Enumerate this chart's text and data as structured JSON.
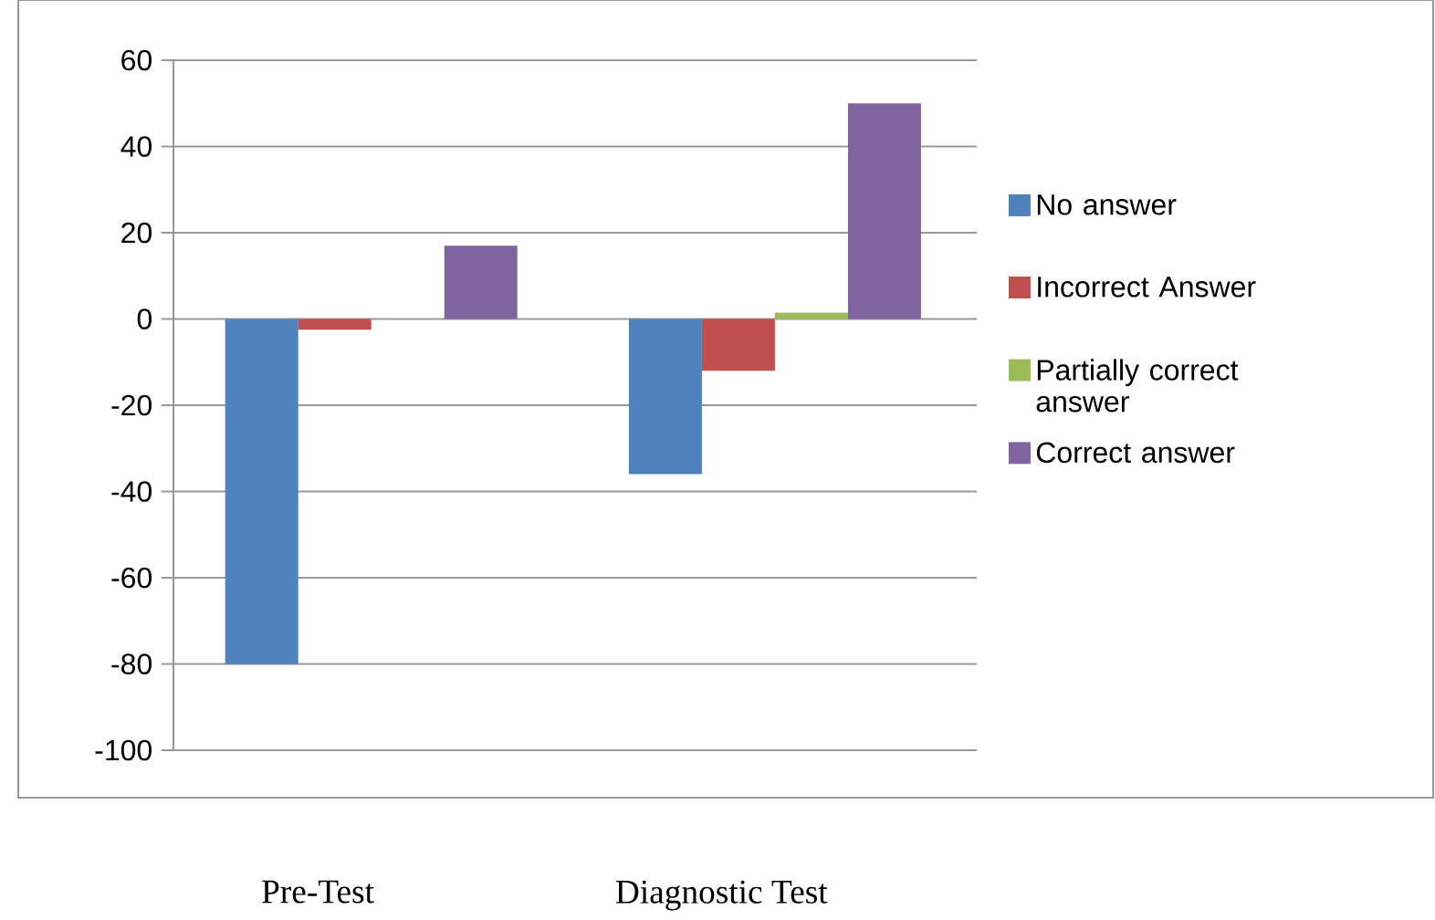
{
  "chart_data": {
    "type": "bar",
    "categories": [
      "Pre-Test",
      "Diagnostic Test"
    ],
    "series": [
      {
        "name": "No answer",
        "color": "#4f81bd",
        "values": [
          -80,
          -36
        ]
      },
      {
        "name": "Incorrect Answer",
        "color": "#c0504d",
        "values": [
          -2.5,
          -12
        ]
      },
      {
        "name": "Partially correct answer",
        "color": "#9bbb59",
        "values": [
          0,
          1.5
        ]
      },
      {
        "name": "Correct answer",
        "color": "#8064a2",
        "values": [
          17,
          50
        ]
      }
    ],
    "ylim": [
      -100,
      60
    ],
    "yticks": [
      -100,
      -80,
      -60,
      -40,
      -20,
      0,
      20,
      40,
      60
    ],
    "grid": "y",
    "legend": "right"
  }
}
